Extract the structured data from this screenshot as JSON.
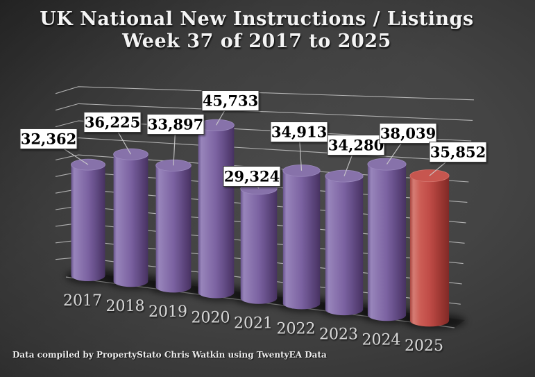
{
  "page": {
    "footer": "Data compiled by PropertyStato Chris Watkin using TwentyEA Data"
  },
  "chart_data": {
    "type": "bar",
    "style": "3d-cylinder-perspective",
    "title": "UK National New Instructions / Listings",
    "subtitle": "Week 37 of 2017 to 2025",
    "categories": [
      "2017",
      "2018",
      "2019",
      "2020",
      "2021",
      "2022",
      "2023",
      "2024",
      "2025"
    ],
    "values": [
      32362,
      36225,
      33897,
      45733,
      29324,
      34913,
      34280,
      38039,
      35852
    ],
    "value_labels": [
      "32,362",
      "36,225",
      "33,897",
      "45,733",
      "29,324",
      "34,913",
      "34,280",
      "38,039",
      "35,852"
    ],
    "highlight_index": 8,
    "xlabel": "",
    "ylabel": "",
    "ylim": [
      0,
      55000
    ],
    "gridline_step": 5000,
    "grid": true,
    "legend": "none",
    "colors": {
      "bar_purple": "#7b62a1",
      "bar_red": "#c0504d",
      "gridline": "#c6c6c6",
      "label_box_bg": "#ffffff",
      "label_box_border": "#3a3a3a",
      "label_text": "#000000",
      "axis_text": "#d6d6d6",
      "title_text": "#f4f4f4",
      "background_center": "#4b4b4b",
      "background_edge": "#1c1c1c"
    }
  }
}
